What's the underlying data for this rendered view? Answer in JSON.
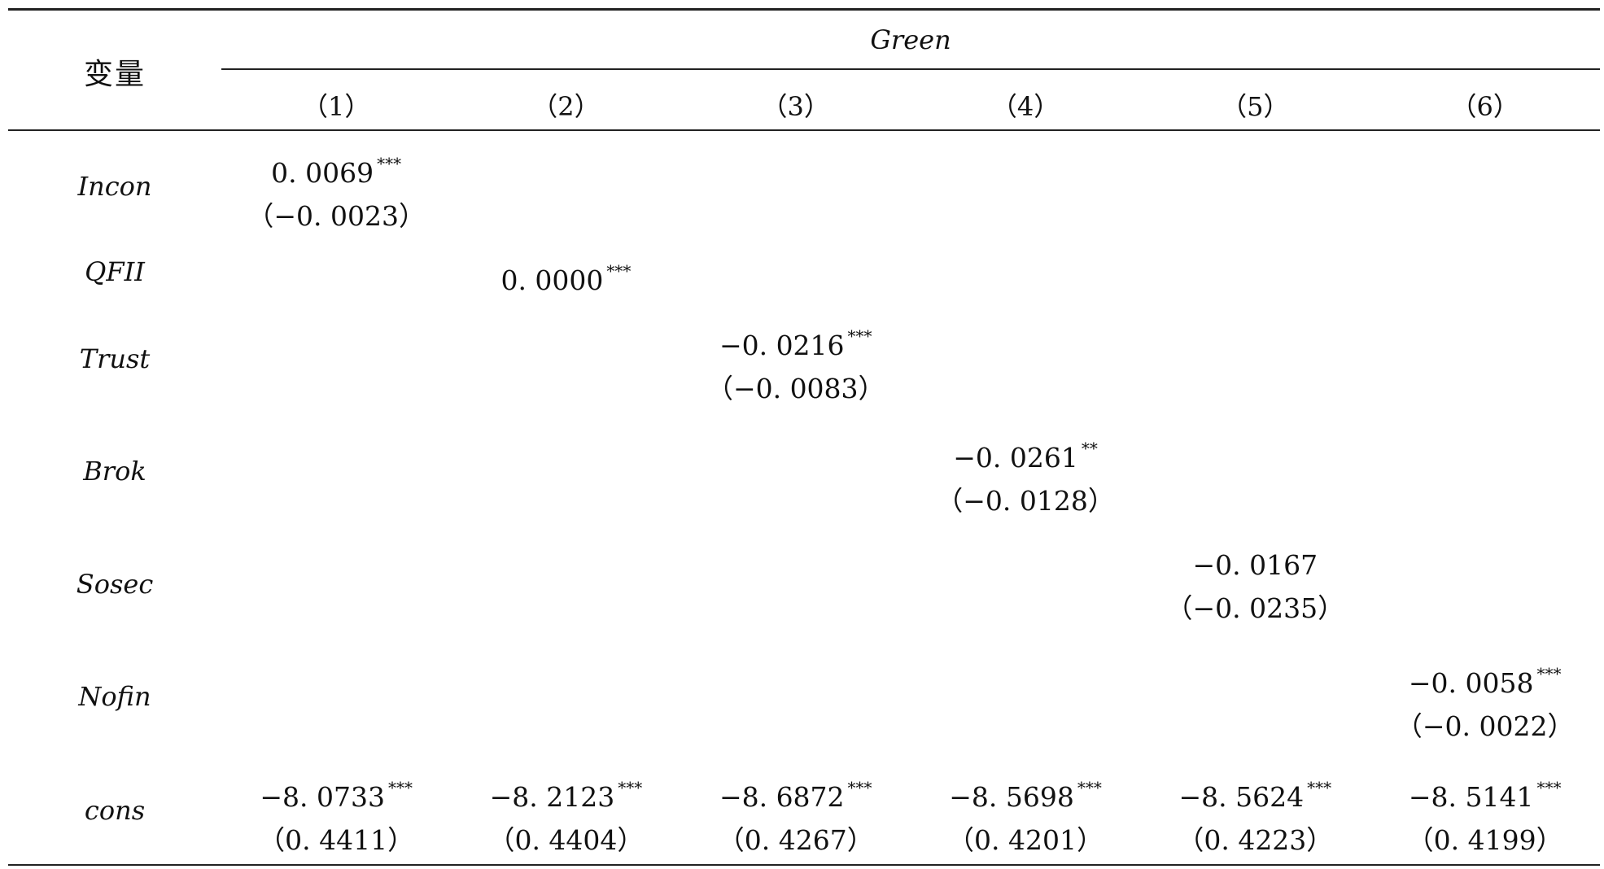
{
  "header": {
    "variable_label": "变量",
    "group_label": "Green",
    "columns": [
      "（1）",
      "（2）",
      "（3）",
      "（4）",
      "（5）",
      "（6）"
    ]
  },
  "rows": [
    {
      "label": "Incon",
      "cells": [
        {
          "coef": "0. 0069",
          "stars": "***",
          "se": "（−0. 0023）"
        },
        null,
        null,
        null,
        null,
        null
      ]
    },
    {
      "label": "QFII",
      "cells": [
        null,
        {
          "coef": "0. 0000",
          "stars": "***",
          "se": ""
        },
        null,
        null,
        null,
        null
      ]
    },
    {
      "label": "Trust",
      "cells": [
        null,
        null,
        {
          "coef": "−0. 0216",
          "stars": "***",
          "se": "（−0. 0083）"
        },
        null,
        null,
        null
      ]
    },
    {
      "label": "Brok",
      "cells": [
        null,
        null,
        null,
        {
          "coef": "−0. 0261",
          "stars": "**",
          "se": "（−0. 0128）"
        },
        null,
        null
      ]
    },
    {
      "label": "Sosec",
      "cells": [
        null,
        null,
        null,
        null,
        {
          "coef": "−0. 0167",
          "stars": "",
          "se": "（−0. 0235）"
        },
        null
      ]
    },
    {
      "label": "Nofin",
      "cells": [
        null,
        null,
        null,
        null,
        null,
        {
          "coef": "−0. 0058",
          "stars": "***",
          "se": "（−0. 0022）"
        }
      ]
    },
    {
      "label": "cons",
      "cells": [
        {
          "coef": "−8. 0733",
          "stars": "***",
          "se": "（0. 4411）"
        },
        {
          "coef": "−8. 2123",
          "stars": "***",
          "se": "（0. 4404）"
        },
        {
          "coef": "−8. 6872",
          "stars": "***",
          "se": "（0. 4267）"
        },
        {
          "coef": "−8. 5698",
          "stars": "***",
          "se": "（0. 4201）"
        },
        {
          "coef": "−8. 5624",
          "stars": "***",
          "se": "（0. 4223）"
        },
        {
          "coef": "−8. 5141",
          "stars": "***",
          "se": "（0. 4199）"
        }
      ]
    }
  ]
}
